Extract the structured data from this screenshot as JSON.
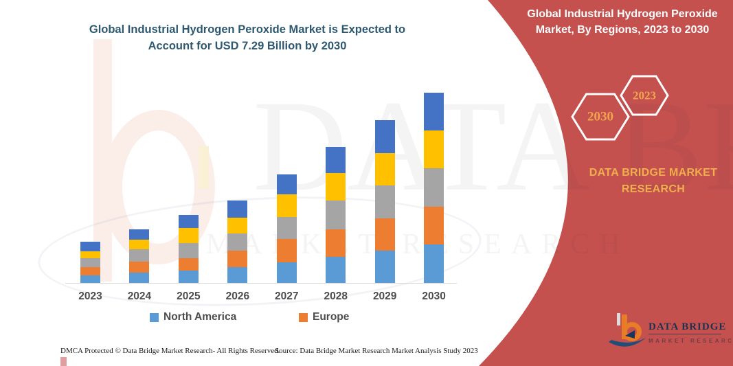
{
  "titles": {
    "main": "Global Industrial Hydrogen Peroxide Market is Expected to Account for USD 7.29 Billion by 2030",
    "side": "Global Industrial Hydrogen Peroxide Market, By Regions, 2023 to 2030"
  },
  "side_panel": {
    "color": "#c5514e",
    "hexagons": [
      {
        "label": "2030"
      },
      {
        "label": "2023"
      }
    ],
    "brand_caption": "DATA BRIDGE MARKET RESEARCH",
    "accent_text_color": "#efaf4d"
  },
  "chart_data": {
    "type": "bar",
    "stacked": true,
    "title": "Global Industrial Hydrogen Peroxide Market is Expected to Account for USD 7.29 Billion by 2030",
    "unit": "USD Billion",
    "categories": [
      "2023",
      "2024",
      "2025",
      "2026",
      "2027",
      "2028",
      "2029",
      "2030"
    ],
    "series": [
      {
        "name": "North America",
        "color": "#5b9bd5",
        "values": [
          0.29,
          0.4,
          0.47,
          0.6,
          0.79,
          1.01,
          1.24,
          1.47
        ]
      },
      {
        "name": "Europe",
        "color": "#ed7d31",
        "values": [
          0.33,
          0.41,
          0.47,
          0.63,
          0.89,
          1.05,
          1.23,
          1.44
        ]
      },
      {
        "name": "Unlabeled gray",
        "color": "#a5a5a5",
        "values": [
          0.32,
          0.48,
          0.59,
          0.67,
          0.84,
          1.11,
          1.28,
          1.49
        ]
      },
      {
        "name": "Unlabeled yellow",
        "color": "#ffc000",
        "values": [
          0.28,
          0.37,
          0.57,
          0.59,
          0.89,
          1.03,
          1.24,
          1.45
        ]
      },
      {
        "name": "Unlabeled dark blue",
        "color": "#4472c4",
        "values": [
          0.35,
          0.4,
          0.51,
          0.66,
          0.74,
          1.01,
          1.24,
          1.44
        ]
      }
    ],
    "totals": [
      1.57,
      2.06,
      2.61,
      3.15,
      4.15,
      5.21,
      6.23,
      7.29
    ],
    "ylim": [
      0,
      7.5
    ],
    "grid": false,
    "legend_position": "bottom"
  },
  "legend": {
    "items": [
      {
        "label": "North America",
        "color": "#5b9bd5"
      },
      {
        "label": "Europe",
        "color": "#ed7d31"
      }
    ]
  },
  "watermark": {
    "line1": "DATA BRIDGE",
    "line2": "MARKET RESEARCH"
  },
  "logo": {
    "name": "DATA BRIDGE",
    "sub": "MARKET RESEARCH"
  },
  "footer": {
    "dmca": "DMCA Protected © Data Bridge Market Research-  All Rights Reserved.",
    "source": "Source: Data Bridge Market Research  Market Analysis Study 2023"
  }
}
